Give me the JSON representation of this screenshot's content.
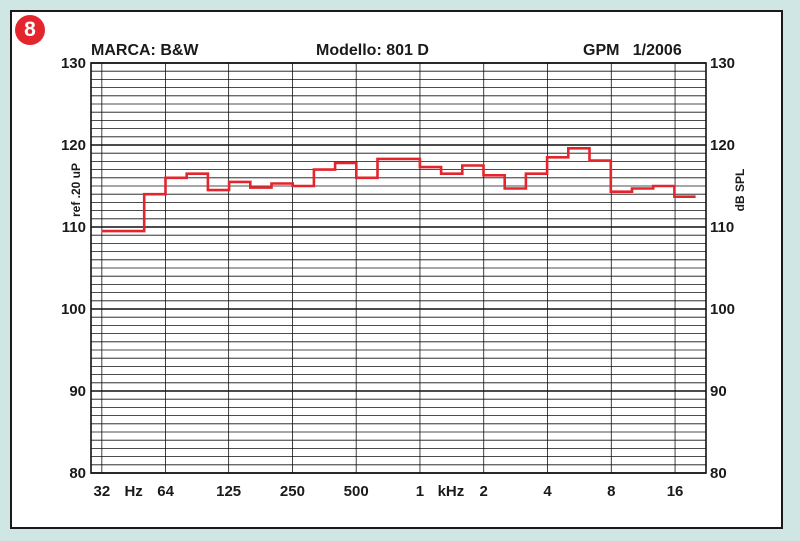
{
  "badge": "8",
  "header": {
    "brand": "MARCA: B&W",
    "model": "Modello: 801 D",
    "source": "GPM   1/2006"
  },
  "chart_data": {
    "type": "line",
    "step": true,
    "ylim": [
      80,
      130
    ],
    "y_ticks": [
      80,
      90,
      100,
      110,
      120,
      130
    ],
    "ylabel_left": "ref .20 uP",
    "ylabel_right": "dB SPL",
    "x_ticks": [
      "32",
      "Hz",
      "64",
      "125",
      "250",
      "500",
      "1",
      "kHz",
      "2",
      "4",
      "8",
      "16"
    ],
    "x_band_start_hz": 31.5,
    "x_band_end_hz": 20000,
    "line_color": "#e3262d",
    "grid": true,
    "series": [
      {
        "x": [
          "31.5 Hz",
          "40 Hz",
          "50 Hz",
          "63 Hz",
          "80 Hz",
          "100 Hz",
          "125 Hz",
          "160 Hz",
          "200 Hz",
          "250 Hz",
          "315 Hz",
          "400 Hz",
          "500 Hz",
          "630 Hz",
          "800 Hz",
          "1 kHz",
          "1.25 kHz",
          "1.6 kHz",
          "2 kHz",
          "2.5 kHz",
          "3.15 kHz",
          "4 kHz",
          "5 kHz",
          "6.3 kHz",
          "8 kHz",
          "10 kHz",
          "12.5 kHz",
          "16 kHz"
        ],
        "values": [
          109.5,
          109.5,
          114,
          116,
          116.5,
          114.5,
          115.5,
          114.8,
          115.3,
          115,
          117,
          117.8,
          116,
          118.3,
          118.3,
          117.3,
          116.5,
          117.5,
          116.3,
          114.7,
          116.5,
          118.5,
          119.6,
          118.1,
          114.3,
          114.7,
          115,
          113.7
        ]
      }
    ]
  }
}
